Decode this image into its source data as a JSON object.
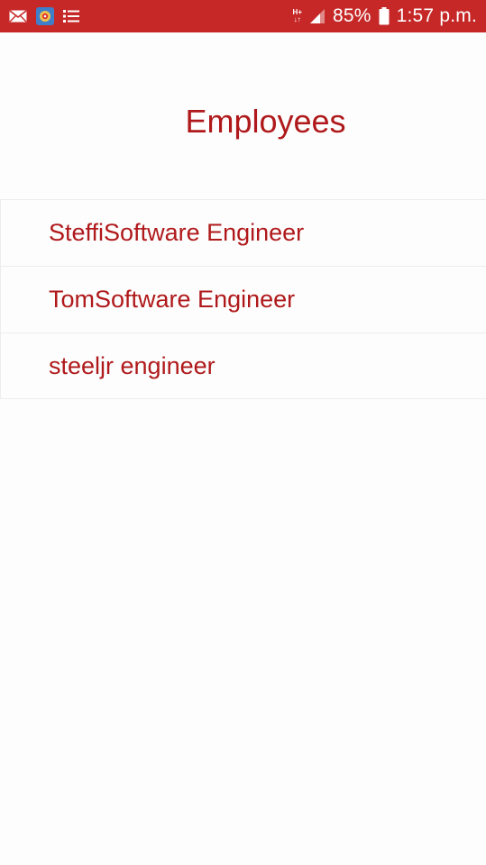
{
  "status_bar": {
    "left_icons": [
      "mail-icon",
      "app-icon",
      "list-icon"
    ],
    "network_type_top": "H+",
    "network_type_bottom": "↓↑",
    "battery_percent": "85%",
    "time": "1:57 p.m.",
    "bar_color": "#c62828"
  },
  "header": {
    "title": "Employees"
  },
  "employees": [
    {
      "text": "SteffiSoftware Engineer"
    },
    {
      "text": "TomSoftware Engineer"
    },
    {
      "text": "steeljr engineer"
    }
  ],
  "colors": {
    "accent": "#b0191b",
    "background": "#fdfdfd",
    "divider": "#ededed"
  }
}
